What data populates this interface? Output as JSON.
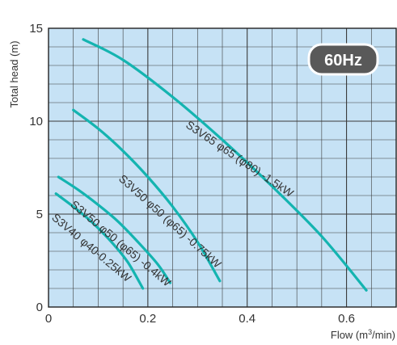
{
  "chart_data": {
    "type": "line",
    "title": "",
    "xlabel": "Flow (m",
    "xlabel_sup": "3",
    "xlabel_tail": "/min)",
    "ylabel": "Total head (m)",
    "xlim": [
      0,
      0.7
    ],
    "ylim": [
      0,
      15
    ],
    "x_ticks": [
      0,
      0.2,
      0.4,
      0.6
    ],
    "x_tick_labels": [
      "0",
      "0.2",
      "0.4",
      "0.6"
    ],
    "y_ticks": [
      0,
      5,
      10,
      15
    ],
    "y_tick_labels": [
      "0",
      "5",
      "10",
      "15"
    ],
    "grid": true,
    "badge": "60Hz",
    "colors": {
      "plot_background": "#c6e2f5",
      "grid": "#3a3a3a",
      "curve": "#14b4b0",
      "badge_fill": "#595959"
    },
    "series": [
      {
        "name": "S3V65 φ65 (φ80) -1.5kW",
        "x": [
          0.07,
          0.15,
          0.25,
          0.35,
          0.45,
          0.55,
          0.64
        ],
        "y": [
          14.4,
          13.3,
          11.3,
          9.0,
          6.5,
          3.8,
          0.9
        ]
      },
      {
        "name": "S3V50 φ50 (φ65) -0.75kW",
        "x": [
          0.05,
          0.1,
          0.15,
          0.2,
          0.25,
          0.3,
          0.345
        ],
        "y": [
          10.6,
          9.6,
          8.4,
          7.0,
          5.4,
          3.5,
          1.4
        ]
      },
      {
        "name": "S3V50 φ50 (φ65) -0.4kW",
        "x": [
          0.02,
          0.06,
          0.1,
          0.14,
          0.18,
          0.22,
          0.245
        ],
        "y": [
          7.0,
          6.3,
          5.5,
          4.6,
          3.5,
          2.3,
          1.3
        ]
      },
      {
        "name": "S3V40 φ40-0.25kW",
        "x": [
          0.015,
          0.05,
          0.09,
          0.13,
          0.16,
          0.19
        ],
        "y": [
          6.1,
          5.4,
          4.5,
          3.4,
          2.4,
          1.0
        ]
      }
    ]
  }
}
